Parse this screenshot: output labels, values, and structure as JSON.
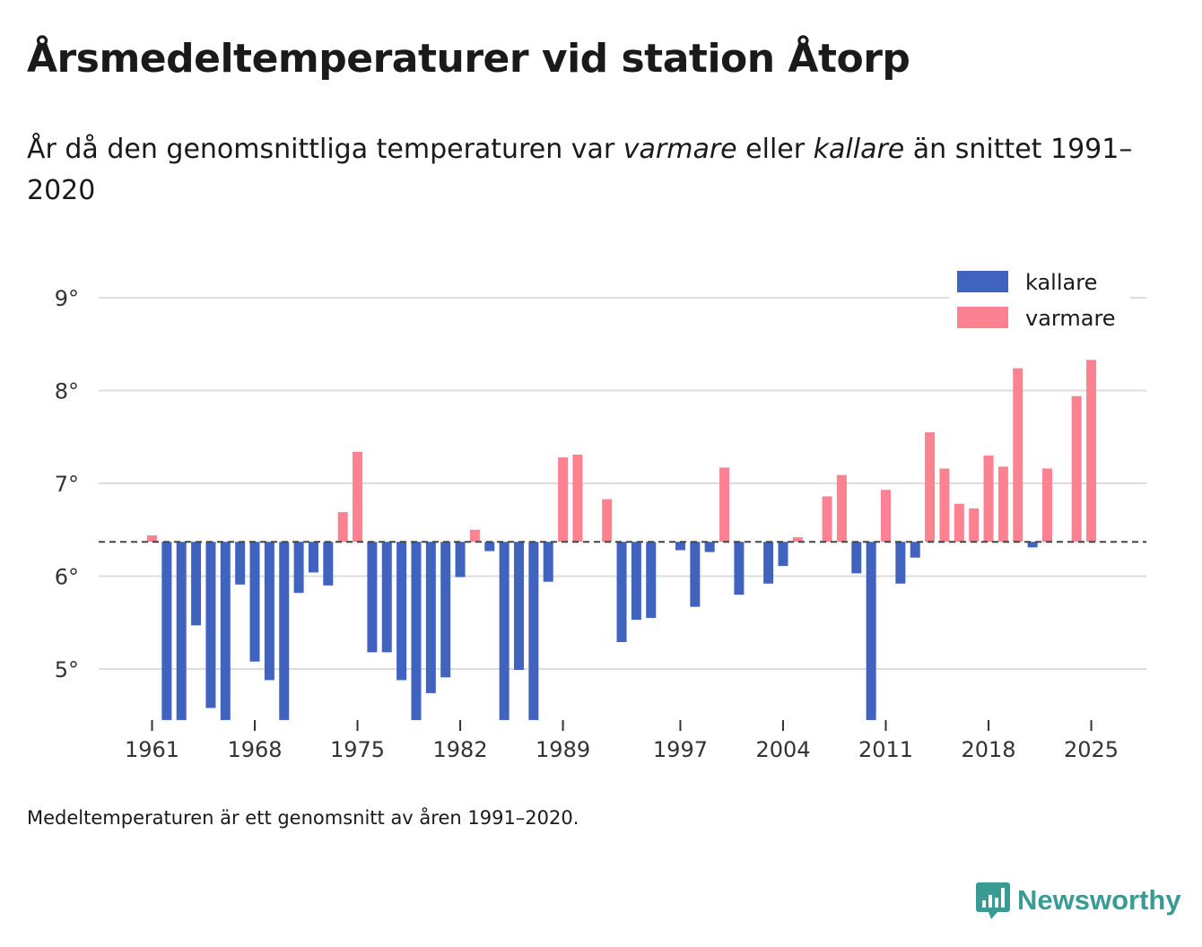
{
  "title": "Årsmedeltemperaturer vid station Åtorp",
  "subtitle": {
    "part1": "År då den genomsnittliga temperaturen var ",
    "warmer_word": "varmare",
    "part2": " eller ",
    "colder_word": "kallare",
    "part3": " än snittet 1991–2020"
  },
  "note": "Medeltemperaturen är ett genomsnitt av åren 1991–2020.",
  "brand": {
    "name": "Newsworthy",
    "icon": "newsworthy-logo-icon",
    "color": "#3a9a94"
  },
  "colors": {
    "colder": "#4063c0",
    "warmer": "#fc8291",
    "grid": "#dddddd",
    "baseline": "#444444"
  },
  "chart_data": {
    "type": "bar",
    "title": "Årsmedeltemperaturer vid station Åtorp",
    "xlabel": "",
    "ylabel": "",
    "baseline": 6.37,
    "ylim": [
      4.45,
      9.35
    ],
    "yticks": [
      5,
      6,
      7,
      8,
      9
    ],
    "ytick_labels": [
      "5°",
      "6°",
      "7°",
      "8°",
      "9°"
    ],
    "xticks": [
      1961,
      1968,
      1975,
      1982,
      1989,
      1997,
      2004,
      2011,
      2018,
      2025
    ],
    "xtick_labels": [
      "1961",
      "1968",
      "1975",
      "1982",
      "1989",
      "1997",
      "2004",
      "2011",
      "2018",
      "2025"
    ],
    "grid": true,
    "legend": {
      "position": "top-right",
      "entries": [
        {
          "label": "kallare",
          "series": "colder"
        },
        {
          "label": "varmare",
          "series": "warmer"
        }
      ]
    },
    "series": [
      {
        "name": "temperature",
        "unit": "°C",
        "x": [
          1961,
          1962,
          1963,
          1964,
          1965,
          1966,
          1967,
          1968,
          1969,
          1970,
          1971,
          1972,
          1973,
          1974,
          1975,
          1976,
          1977,
          1978,
          1979,
          1980,
          1981,
          1982,
          1983,
          1984,
          1985,
          1986,
          1987,
          1988,
          1989,
          1990,
          1991,
          1992,
          1993,
          1994,
          1995,
          1996,
          1997,
          1998,
          1999,
          2000,
          2001,
          2002,
          2003,
          2004,
          2005,
          2006,
          2007,
          2008,
          2009,
          2010,
          2011,
          2012,
          2013,
          2014,
          2015,
          2016,
          2017,
          2018,
          2019,
          2020,
          2021,
          2022,
          2023,
          2024,
          2025
        ],
        "values": [
          6.44,
          4.45,
          4.45,
          5.47,
          4.58,
          4.45,
          5.91,
          5.08,
          4.88,
          4.45,
          5.82,
          6.04,
          5.9,
          6.69,
          7.34,
          5.18,
          5.18,
          4.88,
          4.45,
          4.74,
          4.91,
          5.99,
          6.5,
          6.27,
          4.45,
          4.99,
          4.45,
          5.94,
          7.28,
          7.31,
          null,
          6.83,
          5.29,
          5.53,
          5.55,
          null,
          6.28,
          5.67,
          6.26,
          7.17,
          5.8,
          null,
          5.92,
          6.11,
          6.42,
          null,
          6.86,
          7.09,
          6.03,
          4.45,
          6.93,
          5.92,
          6.2,
          7.55,
          7.16,
          6.78,
          6.73,
          7.3,
          7.18,
          8.24,
          6.31,
          7.16,
          null,
          7.94,
          8.33
        ]
      }
    ]
  }
}
